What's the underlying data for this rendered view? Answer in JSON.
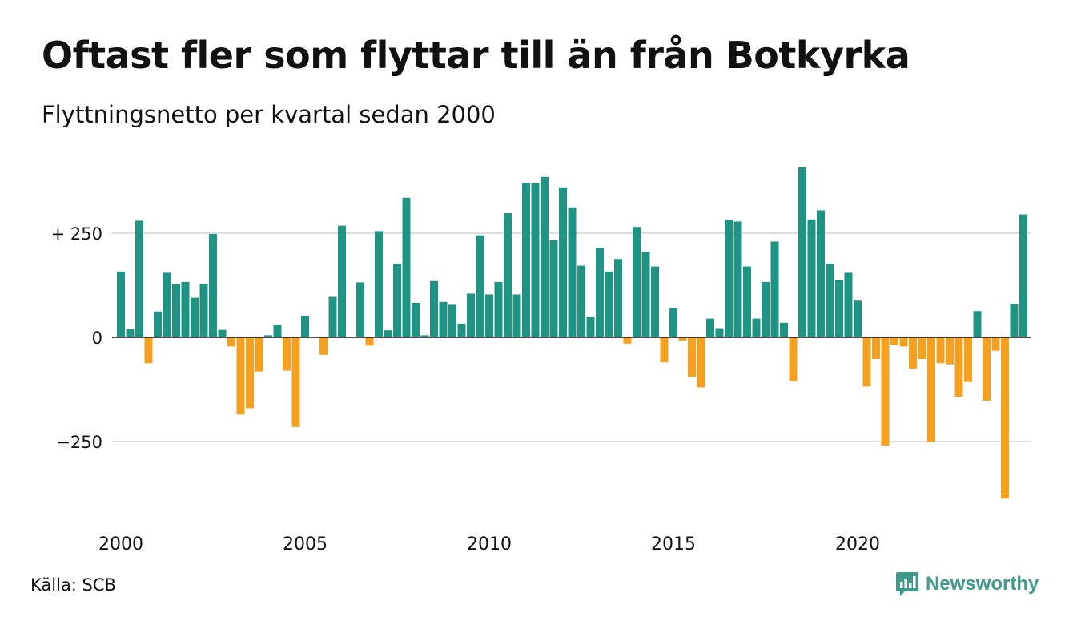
{
  "header": {
    "title": "Oftast fler som flyttar till än från Botkyrka",
    "subtitle": "Flyttningsnetto per kvartal sedan 2000"
  },
  "footer": {
    "source": "Källa: SCB",
    "brand": "Newsworthy"
  },
  "colors": {
    "positive": "#1f9384",
    "negative": "#f5a01f",
    "brand": "#3f9b8b",
    "grid": "#dddddd"
  },
  "icons": {
    "brand": "newsworthy-logo-icon"
  },
  "chart_data": {
    "type": "bar",
    "title": "Oftast fler som flyttar till än från Botkyrka",
    "subtitle": "Flyttningsnetto per kvartal sedan 2000",
    "xlabel": "",
    "ylabel": "",
    "x_start_year": 2000,
    "periods_per_year": 4,
    "x_tick_labels": [
      "2000",
      "2005",
      "2010",
      "2015",
      "2020"
    ],
    "y_ticks": [
      250,
      0,
      -250
    ],
    "y_tick_labels": [
      "+ 250",
      "0",
      "−250"
    ],
    "ylim": [
      -400,
      420
    ],
    "grid": true,
    "legend": "none",
    "series": [
      {
        "values": [
          158,
          20,
          280,
          -62,
          62,
          155,
          128,
          133,
          95,
          128,
          248,
          18,
          -22,
          -185,
          -170,
          -82,
          5,
          30,
          -80,
          -215,
          52,
          0,
          -42,
          97,
          268,
          0,
          132,
          -20,
          255,
          17,
          177,
          335,
          83,
          5,
          135,
          85,
          78,
          33,
          105,
          245,
          103,
          133,
          298,
          103,
          370,
          370,
          385,
          233,
          360,
          312,
          172,
          50,
          215,
          158,
          188,
          -15,
          265,
          205,
          170,
          -60,
          70,
          -8,
          -95,
          -120,
          45,
          22,
          282,
          278,
          170,
          45,
          133,
          230,
          35,
          -105,
          408,
          283,
          305,
          177,
          137,
          155,
          88,
          -118,
          -52,
          -260,
          -18,
          -22,
          -75,
          -52,
          -252,
          -62,
          -65,
          -143,
          -107,
          63,
          -152,
          -32,
          -387,
          80,
          295
        ]
      }
    ]
  }
}
